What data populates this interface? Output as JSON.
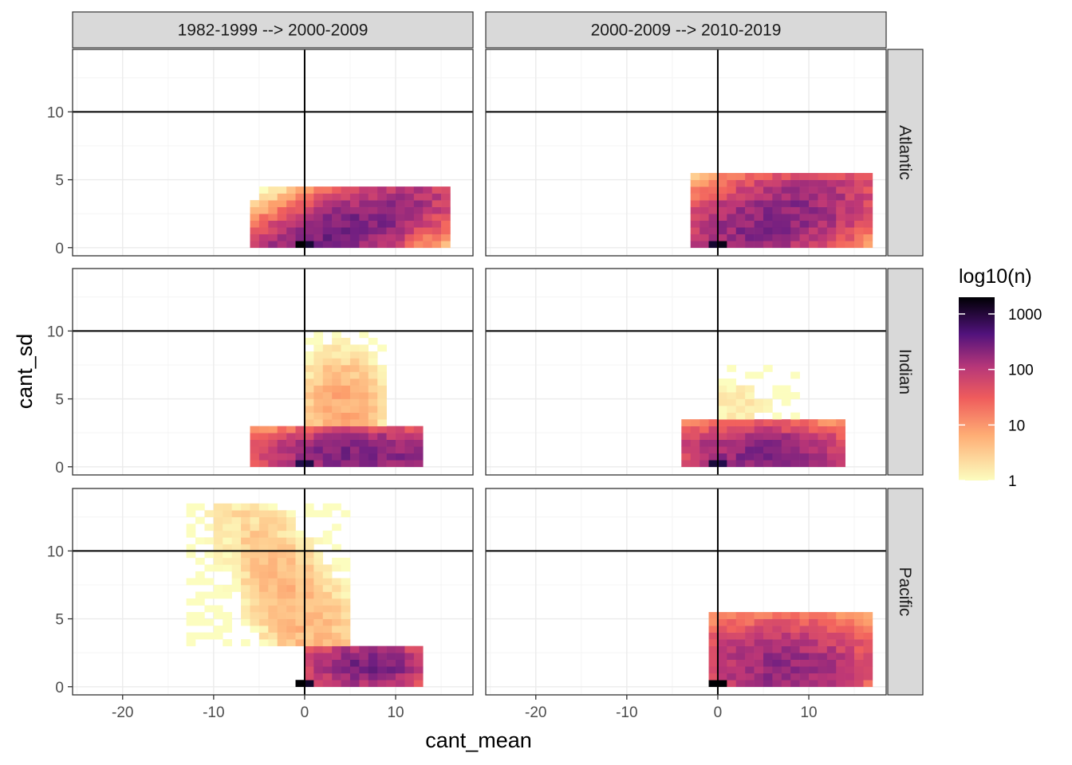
{
  "chart_data": {
    "type": "heatmap",
    "xlabel": "cant_mean",
    "ylabel": "cant_sd",
    "xlim": [
      -25.5,
      18.5
    ],
    "ylim": [
      -0.6,
      14.6
    ],
    "x_ticks": [
      -20,
      -10,
      0,
      10
    ],
    "x_tick_labels": [
      "-20",
      "-10",
      "0",
      "10"
    ],
    "y_ticks": [
      0,
      5,
      10
    ],
    "y_tick_labels": [
      "0",
      "5",
      "10"
    ],
    "bin_width_x": 1,
    "bin_width_y": 0.5,
    "reference_lines": {
      "vline_x": 0,
      "hline_y": 10
    },
    "col_facets": [
      "1982-1999 --> 2000-2009",
      "2000-2009 --> 2010-2019"
    ],
    "row_facets": [
      "Atlantic",
      "Indian",
      "Pacific"
    ],
    "legend": {
      "title": "log10(n)",
      "breaks": [
        1,
        10,
        100,
        1000
      ],
      "break_labels": [
        "1",
        "10",
        "100",
        "1000"
      ],
      "range": [
        1,
        2000
      ],
      "palette": "magma-reversed"
    },
    "panels": [
      {
        "row": "Atlantic",
        "col": "1982-1999 --> 2000-2009",
        "count_scale": 1.0,
        "clusters": [
          {
            "xs": [
              -6,
              16
            ],
            "ys": [
              0,
              4.5
            ],
            "x_peak": 4,
            "y_peak": 1.2,
            "peak_count": 300,
            "slope": 0.22
          },
          {
            "xs": [
              -1,
              1
            ],
            "ys": [
              0,
              0.5
            ],
            "x_peak": 0,
            "y_peak": 0,
            "peak_count": 2000,
            "slope": 0
          }
        ]
      },
      {
        "row": "Atlantic",
        "col": "2000-2009 --> 2010-2019",
        "count_scale": 1.0,
        "clusters": [
          {
            "xs": [
              -3,
              17
            ],
            "ys": [
              0,
              5.5
            ],
            "x_peak": 6,
            "y_peak": 2.0,
            "peak_count": 250,
            "slope": 0.15
          },
          {
            "xs": [
              -1,
              1
            ],
            "ys": [
              0,
              0.5
            ],
            "x_peak": 0,
            "y_peak": 0,
            "peak_count": 2000,
            "slope": 0
          }
        ]
      },
      {
        "row": "Indian",
        "col": "1982-1999 --> 2000-2009",
        "count_scale": 1.0,
        "clusters": [
          {
            "xs": [
              -6,
              13
            ],
            "ys": [
              0,
              3
            ],
            "x_peak": 6,
            "y_peak": 1.0,
            "peak_count": 300,
            "slope": 0
          },
          {
            "xs": [
              0,
              9
            ],
            "ys": [
              3,
              10
            ],
            "x_peak": 4,
            "y_peak": 4.5,
            "peak_count": 8,
            "slope": 0
          },
          {
            "xs": [
              -1,
              1
            ],
            "ys": [
              0,
              0.5
            ],
            "x_peak": 0,
            "y_peak": 0,
            "peak_count": 1500,
            "slope": 0
          }
        ]
      },
      {
        "row": "Indian",
        "col": "2000-2009 --> 2010-2019",
        "count_scale": 1.0,
        "clusters": [
          {
            "xs": [
              -4,
              14
            ],
            "ys": [
              0,
              3.5
            ],
            "x_peak": 5,
            "y_peak": 1.0,
            "peak_count": 250,
            "slope": 0
          },
          {
            "xs": [
              0,
              9
            ],
            "ys": [
              3.5,
              7.5
            ],
            "x_peak": 2,
            "y_peak": 4.5,
            "peak_count": 2,
            "slope": 0
          },
          {
            "xs": [
              -1,
              1
            ],
            "ys": [
              0,
              0.5
            ],
            "x_peak": 0,
            "y_peak": 0,
            "peak_count": 1500,
            "slope": 0
          }
        ]
      },
      {
        "row": "Pacific",
        "col": "1982-1999 --> 2000-2009",
        "count_scale": 1.0,
        "clusters": [
          {
            "xs": [
              0,
              13
            ],
            "ys": [
              0,
              3
            ],
            "x_peak": 7,
            "y_peak": 1.5,
            "peak_count": 300,
            "slope": 0
          },
          {
            "xs": [
              -13,
              5
            ],
            "ys": [
              3,
              13.5
            ],
            "x_peak": 0,
            "y_peak": 5,
            "peak_count": 6,
            "slope": -0.8
          },
          {
            "xs": [
              -1,
              1
            ],
            "ys": [
              0,
              0.5
            ],
            "x_peak": 0,
            "y_peak": 0,
            "peak_count": 2000,
            "slope": 0
          }
        ]
      },
      {
        "row": "Pacific",
        "col": "2000-2009 --> 2010-2019",
        "count_scale": 1.0,
        "clusters": [
          {
            "xs": [
              -1,
              17
            ],
            "ys": [
              0,
              5.5
            ],
            "x_peak": 7,
            "y_peak": 1.5,
            "peak_count": 200,
            "slope": 0
          },
          {
            "xs": [
              -1,
              1
            ],
            "ys": [
              0,
              0.5
            ],
            "x_peak": 0,
            "y_peak": 0,
            "peak_count": 2000,
            "slope": 0
          }
        ]
      }
    ]
  },
  "colors": {
    "strip_fill": "#d9d9d9",
    "panel_border": "#333333",
    "grid_major": "#ebebeb",
    "grid_minor": "#f4f4f4",
    "ref_line": "#000000",
    "tick_text": "#4d4d4d"
  }
}
